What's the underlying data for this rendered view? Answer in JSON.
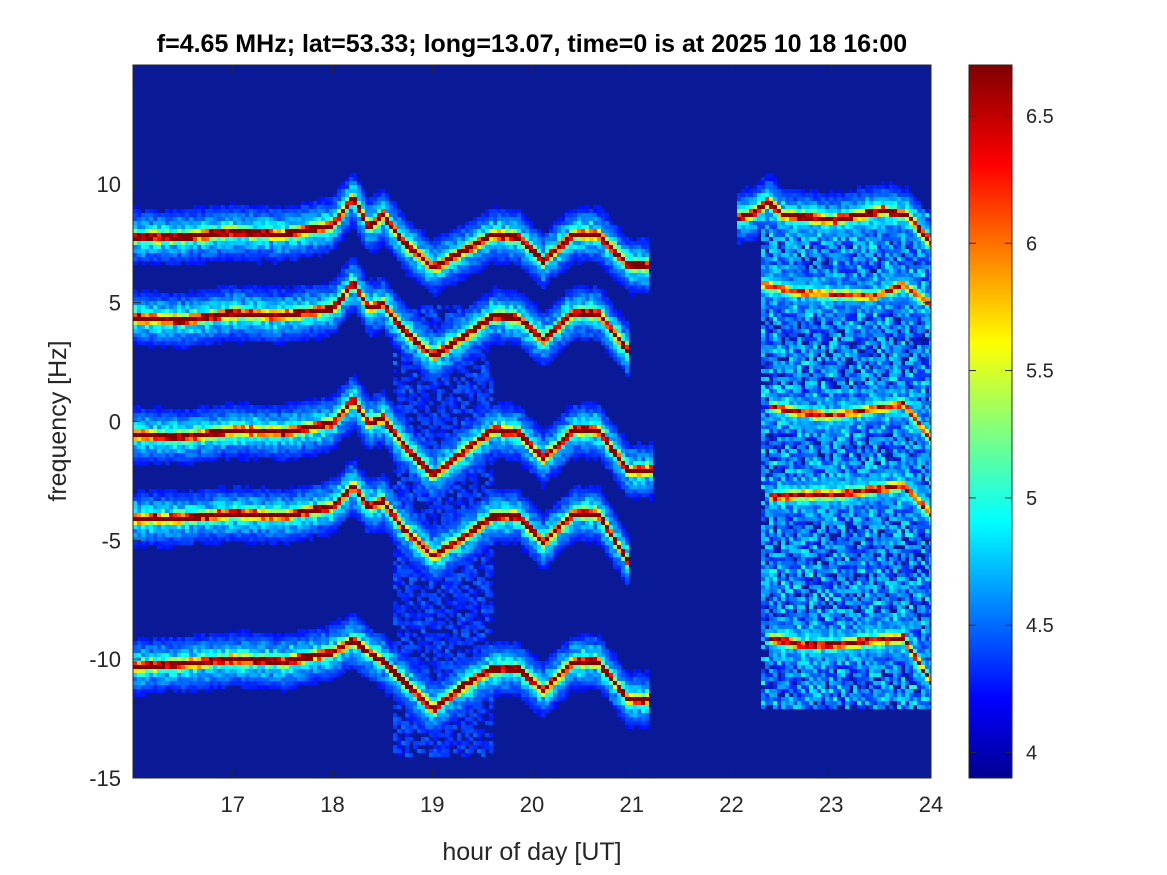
{
  "chart_data": {
    "type": "heatmap",
    "title": "f=4.65 MHz;  lat=53.33; long=13.07, time=0 is at 2025 10 18 16:00",
    "xlabel": "hour of day [UT]",
    "ylabel": "frequency [Hz]",
    "xlim": [
      16,
      24
    ],
    "ylim": [
      -15,
      15
    ],
    "xticks": [
      17,
      18,
      19,
      20,
      21,
      22,
      23,
      24
    ],
    "yticks": [
      -15,
      -10,
      -5,
      0,
      5,
      10
    ],
    "colormap": "jet",
    "background_color": "#0a1a96",
    "colorbar": {
      "clim": [
        3.9,
        6.7
      ],
      "ticks": [
        4,
        4.5,
        5,
        5.5,
        6,
        6.5
      ],
      "tick_labels": [
        "4",
        "4.5",
        "5",
        "5.5",
        "6",
        "6.5"
      ]
    },
    "grid": false,
    "traces": [
      {
        "points": [
          [
            16,
            7.8
          ],
          [
            16.5,
            7.8
          ],
          [
            17,
            8.0
          ],
          [
            17.5,
            7.9
          ],
          [
            18,
            8.3
          ],
          [
            18.2,
            9.5
          ],
          [
            18.35,
            8.2
          ],
          [
            18.5,
            8.7
          ],
          [
            18.7,
            7.6
          ],
          [
            19.0,
            6.5
          ],
          [
            19.3,
            7.2
          ],
          [
            19.6,
            7.9
          ],
          [
            19.85,
            7.8
          ],
          [
            20.1,
            6.8
          ],
          [
            20.4,
            7.9
          ],
          [
            20.65,
            7.9
          ],
          [
            20.95,
            6.6
          ],
          [
            21.15,
            6.6
          ]
        ],
        "weight": 1.0
      },
      {
        "points": [
          [
            16,
            4.4
          ],
          [
            16.5,
            4.3
          ],
          [
            17,
            4.6
          ],
          [
            17.5,
            4.5
          ],
          [
            18,
            4.8
          ],
          [
            18.2,
            5.9
          ],
          [
            18.35,
            4.8
          ],
          [
            18.5,
            5.0
          ],
          [
            18.7,
            3.9
          ],
          [
            19.0,
            2.8
          ],
          [
            19.3,
            3.6
          ],
          [
            19.6,
            4.5
          ],
          [
            19.85,
            4.4
          ],
          [
            20.1,
            3.5
          ],
          [
            20.4,
            4.6
          ],
          [
            20.65,
            4.6
          ],
          [
            20.95,
            3.0
          ]
        ],
        "weight": 1.0
      },
      {
        "points": [
          [
            16,
            -0.5
          ],
          [
            16.5,
            -0.6
          ],
          [
            17,
            -0.3
          ],
          [
            17.5,
            -0.4
          ],
          [
            18,
            0.0
          ],
          [
            18.2,
            1.0
          ],
          [
            18.35,
            0.0
          ],
          [
            18.5,
            0.2
          ],
          [
            18.7,
            -0.9
          ],
          [
            19.0,
            -2.2
          ],
          [
            19.3,
            -1.2
          ],
          [
            19.6,
            -0.3
          ],
          [
            19.85,
            -0.4
          ],
          [
            20.1,
            -1.5
          ],
          [
            20.4,
            -0.3
          ],
          [
            20.65,
            -0.3
          ],
          [
            20.95,
            -2.0
          ],
          [
            21.2,
            -2.0
          ]
        ],
        "weight": 1.0
      },
      {
        "points": [
          [
            16,
            -4.0
          ],
          [
            16.5,
            -4.0
          ],
          [
            17,
            -3.8
          ],
          [
            17.5,
            -3.9
          ],
          [
            18,
            -3.5
          ],
          [
            18.2,
            -2.6
          ],
          [
            18.35,
            -3.5
          ],
          [
            18.5,
            -3.3
          ],
          [
            18.7,
            -4.4
          ],
          [
            19.0,
            -5.6
          ],
          [
            19.3,
            -4.8
          ],
          [
            19.6,
            -3.9
          ],
          [
            19.85,
            -3.9
          ],
          [
            20.1,
            -5.0
          ],
          [
            20.4,
            -3.8
          ],
          [
            20.65,
            -3.8
          ],
          [
            20.95,
            -5.8
          ]
        ],
        "weight": 1.0
      },
      {
        "points": [
          [
            16,
            -10.2
          ],
          [
            16.5,
            -10.1
          ],
          [
            17,
            -9.9
          ],
          [
            17.5,
            -10.0
          ],
          [
            18,
            -9.6
          ],
          [
            18.2,
            -9.1
          ],
          [
            18.35,
            -9.6
          ],
          [
            18.5,
            -10.0
          ],
          [
            18.7,
            -10.8
          ],
          [
            19.0,
            -12.0
          ],
          [
            19.3,
            -11.0
          ],
          [
            19.6,
            -10.3
          ],
          [
            19.85,
            -10.3
          ],
          [
            20.1,
            -11.2
          ],
          [
            20.4,
            -10.0
          ],
          [
            20.65,
            -10.0
          ],
          [
            20.95,
            -11.6
          ],
          [
            21.15,
            -11.6
          ]
        ],
        "weight": 1.0
      },
      {
        "points": [
          [
            22.05,
            8.6
          ],
          [
            22.2,
            8.8
          ],
          [
            22.35,
            9.3
          ],
          [
            22.5,
            8.7
          ],
          [
            23.0,
            8.5
          ],
          [
            23.5,
            8.9
          ],
          [
            23.75,
            8.7
          ],
          [
            24.0,
            7.4
          ]
        ],
        "weight": 0.95
      },
      {
        "points": [
          [
            22.3,
            5.8
          ],
          [
            22.6,
            5.5
          ],
          [
            23.0,
            5.4
          ],
          [
            23.4,
            5.3
          ],
          [
            23.7,
            5.8
          ],
          [
            24.0,
            4.9
          ]
        ],
        "weight": 0.7
      },
      {
        "points": [
          [
            22.35,
            0.7
          ],
          [
            22.7,
            0.4
          ],
          [
            23.0,
            0.3
          ],
          [
            23.4,
            0.6
          ],
          [
            23.7,
            0.8
          ],
          [
            24.0,
            -0.8
          ]
        ],
        "weight": 0.75
      },
      {
        "points": [
          [
            22.35,
            -3.1
          ],
          [
            22.7,
            -3.0
          ],
          [
            23.0,
            -3.0
          ],
          [
            23.4,
            -2.8
          ],
          [
            23.7,
            -2.6
          ],
          [
            24.0,
            -3.9
          ]
        ],
        "weight": 0.8
      },
      {
        "points": [
          [
            22.35,
            -9.0
          ],
          [
            22.7,
            -9.3
          ],
          [
            23.0,
            -9.3
          ],
          [
            23.4,
            -9.1
          ],
          [
            23.7,
            -9.0
          ],
          [
            24.0,
            -11.0
          ]
        ],
        "weight": 0.85
      }
    ],
    "diffuse_regions": [
      {
        "x": [
          22.3,
          24.0
        ],
        "y": [
          -12,
          9
        ],
        "level": 0.18
      },
      {
        "x": [
          18.6,
          19.6
        ],
        "y": [
          -14,
          5
        ],
        "level": 0.08
      }
    ]
  }
}
